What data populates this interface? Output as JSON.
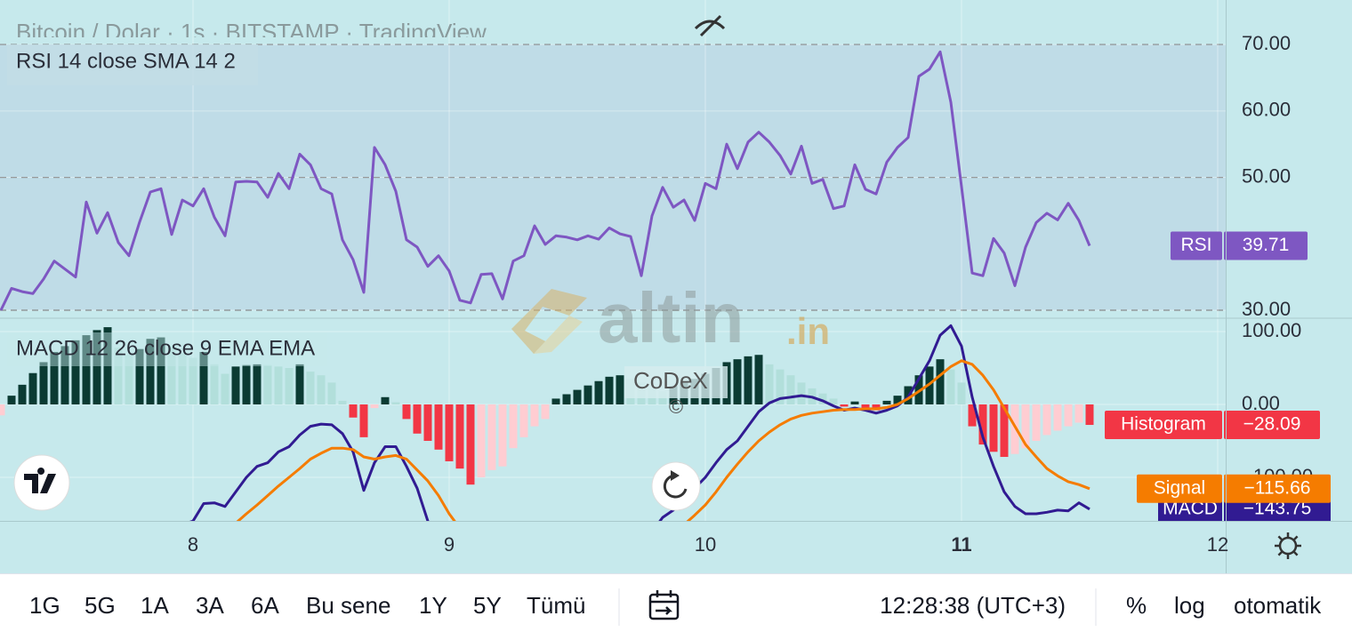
{
  "header": {
    "title": "Bitcoin / Dolar · 1s · BITSTAMP · TradingView"
  },
  "x_axis": {
    "xlim": [
      -0.0833,
      114.75
    ],
    "xticks": [
      {
        "value": 18,
        "label": "8"
      },
      {
        "value": 42,
        "label": "9"
      },
      {
        "value": 66,
        "label": "10"
      },
      {
        "value": 90,
        "label": "11"
      },
      {
        "value": 114,
        "label": "12"
      }
    ]
  },
  "rsi": {
    "type": "line",
    "title": "RSI 14 close SMA 14 2",
    "name": "RSI",
    "color": "#7e57c2",
    "ylim": [
      28.8,
      76.7
    ],
    "yticks": [
      {
        "value": 30,
        "label": "30.00"
      },
      {
        "value": 50,
        "label": "50.00"
      },
      {
        "value": 60,
        "label": "60.00"
      },
      {
        "value": 70,
        "label": "70.00"
      }
    ],
    "levels": [
      30,
      50,
      70
    ],
    "values": [
      30.0,
      33.3,
      32.8,
      32.5,
      34.7,
      37.4,
      36.2,
      35.0,
      46.3,
      41.6,
      44.7,
      40.2,
      38.2,
      43.3,
      47.8,
      48.3,
      41.4,
      46.6,
      45.7,
      48.3,
      44.0,
      41.2,
      49.3,
      49.4,
      49.3,
      47.0,
      50.6,
      48.3,
      53.5,
      51.9,
      48.3,
      47.5,
      40.6,
      37.6,
      32.7,
      54.5,
      51.9,
      47.9,
      40.6,
      39.5,
      36.6,
      38.2,
      35.9,
      31.5,
      31.1,
      35.4,
      35.5,
      31.7,
      37.4,
      38.2,
      42.7,
      39.9,
      41.2,
      41.0,
      40.6,
      41.2,
      40.7,
      42.4,
      41.5,
      41.1,
      35.2,
      44.2,
      48.5,
      45.5,
      46.6,
      43.5,
      49.1,
      48.3,
      55.0,
      51.3,
      55.3,
      56.8,
      55.3,
      53.3,
      50.5,
      54.7,
      49.1,
      49.7,
      45.3,
      45.7,
      51.9,
      48.2,
      47.5,
      52.3,
      54.5,
      56.0,
      65.2,
      66.3,
      68.9,
      61.3,
      48.6,
      35.6,
      35.2,
      40.8,
      38.6,
      33.7,
      39.5,
      43.2,
      44.6,
      43.6,
      46.1,
      43.5,
      39.71
    ]
  },
  "macd": {
    "type": "macd",
    "title": "MACD 12 26 close 9 EMA EMA",
    "ylim": [
      -159.8,
      118.3
    ],
    "yticks": [
      {
        "value": -100,
        "label": "−100.00"
      },
      {
        "value": 0,
        "label": "0.00"
      },
      {
        "value": 100,
        "label": "100.00"
      }
    ],
    "series": [
      {
        "name": "Histogram",
        "type": "bar",
        "color": "#f23645",
        "colors": {
          "rising_positive": "#0b3b33",
          "falling_positive": "#b2dfdb",
          "falling_negative": "#f23645",
          "rising_negative": "#ffcdd2"
        },
        "values": [
          -15,
          12,
          27,
          43,
          58,
          72,
          80,
          88,
          95,
          102,
          106,
          78,
          68,
          76,
          90,
          92,
          80,
          70,
          64,
          72,
          55,
          42,
          52,
          54,
          55,
          54,
          52,
          50,
          55,
          45,
          40,
          30,
          5,
          -18,
          -45,
          -5,
          10,
          3,
          -20,
          -40,
          -50,
          -62,
          -78,
          -88,
          -110,
          -100,
          -90,
          -85,
          -60,
          -45,
          -30,
          -20,
          8,
          14,
          20,
          26,
          32,
          38,
          40,
          35,
          30,
          22,
          18,
          25,
          30,
          35,
          42,
          50,
          58,
          62,
          66,
          68,
          55,
          48,
          40,
          30,
          22,
          15,
          8,
          -3,
          4,
          -5,
          -8,
          5,
          12,
          25,
          40,
          52,
          62,
          48,
          30,
          -30,
          -55,
          -65,
          -72,
          -68,
          -60,
          -50,
          -42,
          -36,
          -30,
          -25,
          -28.09
        ],
        "value_labels": {
          "102": "−28.09"
        }
      },
      {
        "name": "MACD",
        "type": "line",
        "color": "#311b92",
        "values": [
          null,
          null,
          null,
          null,
          null,
          null,
          null,
          null,
          null,
          null,
          null,
          null,
          null,
          null,
          null,
          null,
          -175,
          -165,
          -160,
          -136,
          -135,
          -140,
          -120,
          -100,
          -85,
          -80,
          -65,
          -58,
          -42,
          -30,
          -27,
          -28,
          -40,
          -65,
          -118,
          -80,
          -58,
          -58,
          -85,
          -115,
          -160,
          -190,
          null,
          null,
          null,
          null,
          null,
          null,
          null,
          null,
          null,
          null,
          null,
          null,
          null,
          null,
          null,
          null,
          null,
          null,
          null,
          -175,
          -155,
          -145,
          -130,
          -115,
          -100,
          -80,
          -62,
          -50,
          -30,
          -10,
          2,
          8,
          10,
          12,
          10,
          5,
          -2,
          -8,
          -5,
          -8,
          -12,
          -8,
          -2,
          10,
          35,
          60,
          95,
          108,
          80,
          10,
          -45,
          -85,
          -120,
          -140,
          -150,
          -150,
          -148,
          -145,
          -146,
          -135,
          -143.75
        ],
        "value_labels": {
          "102": "−143.75"
        }
      },
      {
        "name": "Signal",
        "type": "line",
        "color": "#f57c00",
        "values": [
          null,
          null,
          null,
          null,
          null,
          null,
          null,
          null,
          null,
          null,
          null,
          null,
          null,
          null,
          null,
          null,
          null,
          null,
          null,
          null,
          null,
          -175,
          -163,
          -150,
          -138,
          -125,
          -112,
          -100,
          -88,
          -75,
          -67,
          -60,
          -60,
          -62,
          -72,
          -75,
          -72,
          -70,
          -75,
          -90,
          -105,
          -125,
          -150,
          -170,
          null,
          null,
          null,
          null,
          null,
          null,
          null,
          null,
          null,
          null,
          null,
          null,
          null,
          null,
          null,
          null,
          null,
          null,
          null,
          -178,
          -165,
          -152,
          -138,
          -120,
          -100,
          -82,
          -65,
          -50,
          -38,
          -28,
          -20,
          -15,
          -12,
          -10,
          -8,
          -7,
          -7,
          -6,
          -6,
          -4,
          0,
          8,
          18,
          28,
          40,
          52,
          60,
          55,
          40,
          20,
          -5,
          -30,
          -55,
          -72,
          -88,
          -98,
          -106,
          -110,
          -115.66
        ],
        "value_labels": {
          "102": "−115.66"
        }
      }
    ]
  },
  "watermark": {
    "brand": "altin",
    "suffix": ".in",
    "credit": "CoDeX",
    "copyright": "©"
  },
  "toolbar": {
    "ranges": [
      "1G",
      "5G",
      "1A",
      "3A",
      "6A",
      "Bu sene",
      "1Y",
      "5Y",
      "Tümü"
    ],
    "time": "12:28:38 (UTC+3)",
    "options": [
      "%",
      "log",
      "otomatik"
    ]
  }
}
